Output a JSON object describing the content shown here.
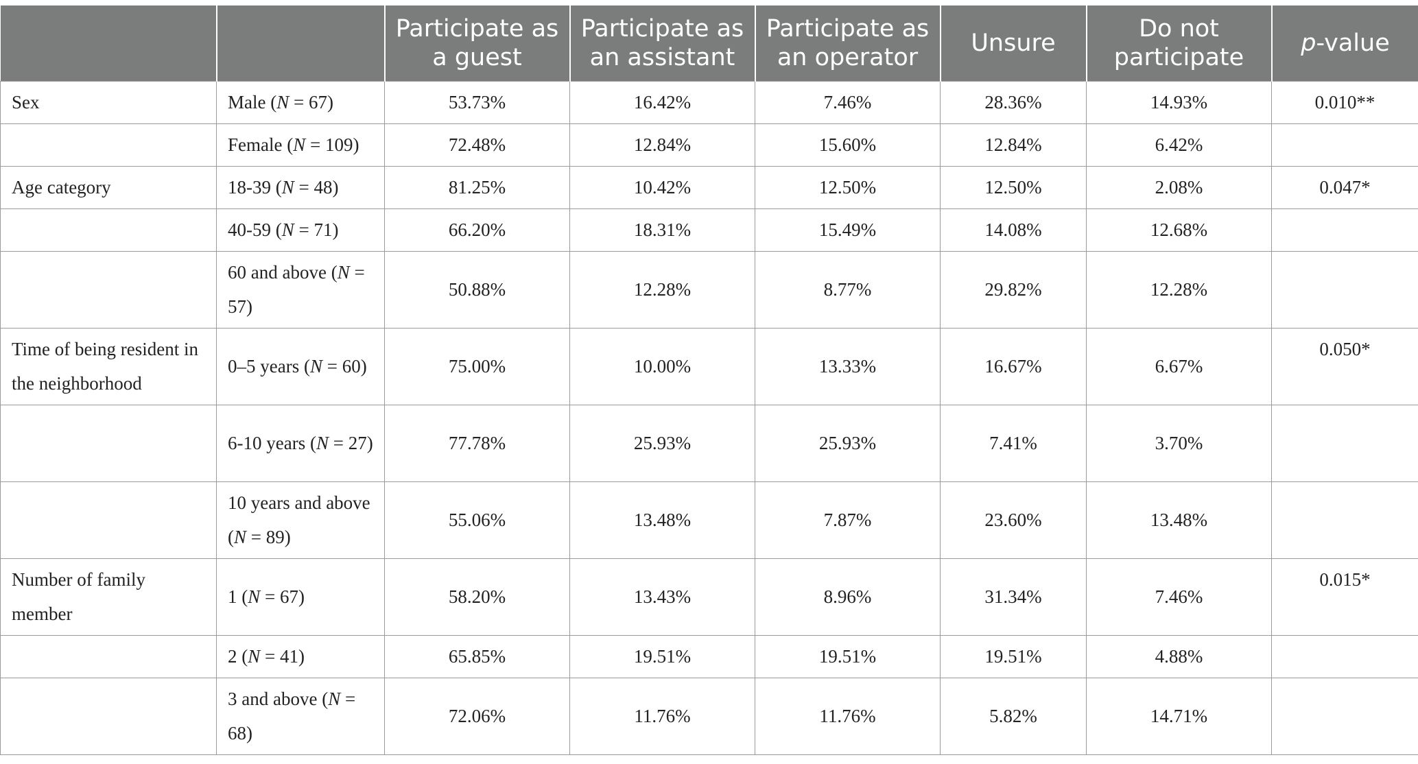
{
  "headers": {
    "blank1": "",
    "blank2": "",
    "guest": "Participate as a guest",
    "assistant": "Participate as an assistant",
    "operator": "Participate as an operator",
    "unsure": "Unsure",
    "no": "Do not participate",
    "p_prefix": "p",
    "p_suffix": "-value"
  },
  "rows": [
    {
      "category": "Sex",
      "group": "Male (",
      "n": "N",
      "eq": " = 67)",
      "guest": "53.73%",
      "assistant": "16.42%",
      "operator": "7.46%",
      "unsure": "28.36%",
      "no": "14.93%",
      "p": "0.010**"
    },
    {
      "category": "",
      "group": "Female (",
      "n": "N",
      "eq": " = 109)",
      "guest": "72.48%",
      "assistant": "12.84%",
      "operator": "15.60%",
      "unsure": "12.84%",
      "no": "6.42%",
      "p": ""
    },
    {
      "category": "Age category",
      "group": "18-39 (",
      "n": "N",
      "eq": " = 48)",
      "guest": "81.25%",
      "assistant": "10.42%",
      "operator": "12.50%",
      "unsure": "12.50%",
      "no": "2.08%",
      "p": "0.047*"
    },
    {
      "category": "",
      "group": "40-59 (",
      "n": "N",
      "eq": " = 71)",
      "guest": "66.20%",
      "assistant": "18.31%",
      "operator": "15.49%",
      "unsure": "14.08%",
      "no": "12.68%",
      "p": ""
    },
    {
      "category": "",
      "group": "60 and above (",
      "n": "N",
      "eq": " = 57)",
      "guest": "50.88%",
      "assistant": "12.28%",
      "operator": "8.77%",
      "unsure": "29.82%",
      "no": "12.28%",
      "p": ""
    },
    {
      "category": "Time of being resident in the neighborhood",
      "group": "0–5 years (",
      "n": "N",
      "eq": " = 60)",
      "guest": "75.00%",
      "assistant": "10.00%",
      "operator": "13.33%",
      "unsure": "16.67%",
      "no": "6.67%",
      "p": "0.050*"
    },
    {
      "category": "",
      "group": "6-10 years (",
      "n": "N",
      "eq": " = 27)",
      "guest": "77.78%",
      "assistant": "25.93%",
      "operator": "25.93%",
      "unsure": "7.41%",
      "no": "3.70%",
      "p": ""
    },
    {
      "category": "",
      "group": "10 years and above (",
      "n": "N",
      "eq": " = 89)",
      "guest": "55.06%",
      "assistant": "13.48%",
      "operator": "7.87%",
      "unsure": "23.60%",
      "no": "13.48%",
      "p": ""
    },
    {
      "category": "Number of family member",
      "group": "1 (",
      "n": "N",
      "eq": " = 67)",
      "guest": "58.20%",
      "assistant": "13.43%",
      "operator": "8.96%",
      "unsure": "31.34%",
      "no": "7.46%",
      "p": "0.015*"
    },
    {
      "category": "",
      "group": "2 (",
      "n": "N",
      "eq": " = 41)",
      "guest": "65.85%",
      "assistant": "19.51%",
      "operator": "19.51%",
      "unsure": "19.51%",
      "no": "4.88%",
      "p": ""
    },
    {
      "category": "",
      "group": "3 and above (",
      "n": "N",
      "eq": " = 68)",
      "guest": "72.06%",
      "assistant": "11.76%",
      "operator": "11.76%",
      "unsure": "5.82%",
      "no": "14.71%",
      "p": ""
    }
  ]
}
